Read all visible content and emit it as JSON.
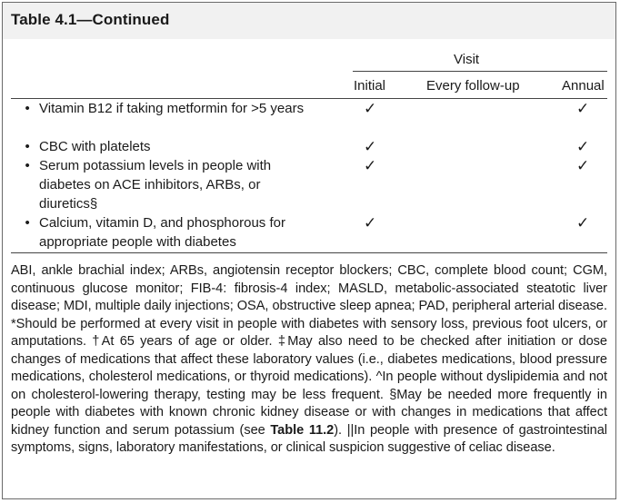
{
  "table": {
    "title": "Table 4.1—Continued",
    "visit_header": "Visit",
    "columns": [
      "Initial",
      "Every follow-up",
      "Annual"
    ]
  },
  "rows": [
    {
      "bullet": "•",
      "label": "Vitamin B12 if taking metformin for >5 years",
      "initial": "✓",
      "followup": "",
      "annual": "✓"
    },
    {
      "bullet": "•",
      "label": "CBC with platelets",
      "initial": "✓",
      "followup": "",
      "annual": "✓"
    },
    {
      "bullet": "•",
      "label": "Serum potassium levels in people with diabetes on ACE inhibitors, ARBs, or diuretics§",
      "initial": "✓",
      "followup": "",
      "annual": "✓"
    },
    {
      "bullet": "•",
      "label": "Calcium, vitamin D, and phosphorous for appropriate people with diabetes",
      "initial": "✓",
      "followup": "",
      "annual": "✓"
    }
  ],
  "footnote": {
    "part1": "ABI, ankle brachial index; ARBs, angiotensin receptor blockers; CBC, complete blood count; CGM, continuous glucose monitor; FIB-4: fibrosis-4 index; MASLD, metabolic-associated steatotic liver disease; MDI, multiple daily injections; OSA, obstructive sleep apnea; PAD, peripheral arterial disease. *Should be performed at every visit in people with diabetes with sensory loss, previous foot ulcers, or amputations. †At 65 years of age or older. ‡May also need to be checked after initiation or dose changes of medications that affect these laboratory values (i.e., diabetes medications, blood pressure medications, cholesterol medications, or thyroid medications). ^In people without dyslipidemia and not on cholesterol-lowering therapy, testing may be less frequent. §May be needed more frequently in people with diabetes with known chronic kidney disease or with changes in medications that affect kidney function and serum potassium (see ",
    "table_ref": "Table 11.2",
    "part2": "). ||In people with presence of gastrointestinal symptoms, signs, laboratory manifestations, or clinical suspicion suggestive of celiac disease."
  }
}
